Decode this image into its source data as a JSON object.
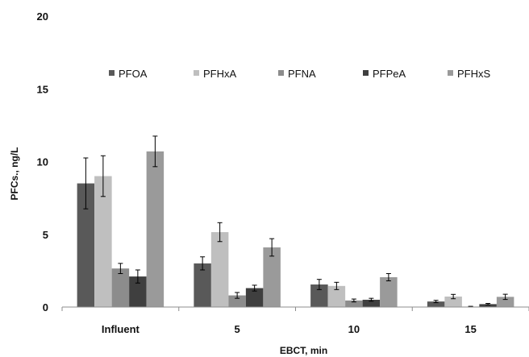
{
  "chart_data": {
    "type": "bar",
    "title": "",
    "xlabel": "EBCT, min",
    "ylabel": "PFCs., ng/L",
    "ylim": [
      0,
      20
    ],
    "yticks": [
      0,
      5,
      10,
      15,
      20
    ],
    "grid": false,
    "legend_position": "top",
    "categories": [
      "Influent",
      "5",
      "10",
      "15"
    ],
    "series": [
      {
        "name": "PFOA",
        "color": "#595959",
        "values": [
          8.5,
          3.0,
          1.55,
          0.38
        ],
        "errors": [
          1.75,
          0.45,
          0.35,
          0.08
        ]
      },
      {
        "name": "PFHxA",
        "color": "#bfbfbf",
        "values": [
          9.0,
          5.15,
          1.45,
          0.72
        ],
        "errors": [
          1.4,
          0.65,
          0.25,
          0.15
        ]
      },
      {
        "name": "PFNA",
        "color": "#8c8c8c",
        "values": [
          2.65,
          0.8,
          0.45,
          0.03
        ],
        "errors": [
          0.35,
          0.2,
          0.1,
          0.02
        ]
      },
      {
        "name": "PFPeA",
        "color": "#3f3f3f",
        "values": [
          2.1,
          1.3,
          0.5,
          0.2
        ],
        "errors": [
          0.45,
          0.2,
          0.1,
          0.05
        ]
      },
      {
        "name": "PFHxS",
        "color": "#9a9a9a",
        "values": [
          10.7,
          4.1,
          2.05,
          0.7
        ],
        "errors": [
          1.05,
          0.6,
          0.25,
          0.18
        ]
      }
    ]
  }
}
